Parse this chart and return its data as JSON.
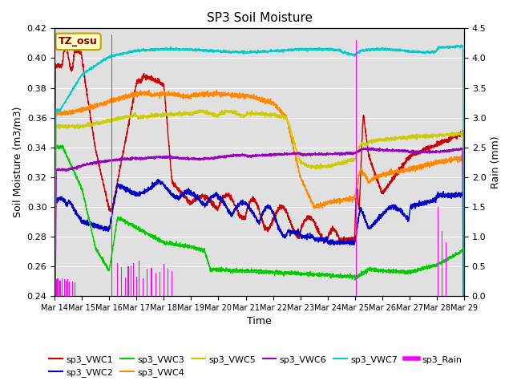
{
  "title": "SP3 Soil Moisture",
  "xlabel": "Time",
  "ylabel_left": "Soil Moisture (m3/m3)",
  "ylabel_right": "Rain (mm)",
  "ylim_left": [
    0.24,
    0.42
  ],
  "ylim_right": [
    0.0,
    4.5
  ],
  "xtick_labels": [
    "Mar 14",
    "Mar 15",
    "Mar 16",
    "Mar 17",
    "Mar 18",
    "Mar 19",
    "Mar 20",
    "Mar 21",
    "Mar 22",
    "Mar 23",
    "Mar 24",
    "Mar 25",
    "Mar 26",
    "Mar 27",
    "Mar 28",
    "Mar 29"
  ],
  "background_color": "#ffffff",
  "plot_bg_color": "#e0e0e0",
  "annotation_box_color": "#ffffc0",
  "annotation_box_edgecolor": "#c8a000",
  "annotation_text": "TZ_osu",
  "colors": {
    "VWC1": "#cc0000",
    "VWC2": "#0000cc",
    "VWC3": "#00cc00",
    "VWC4": "#ff8800",
    "VWC5": "#cccc00",
    "VWC6": "#9900bb",
    "VWC7": "#00cccc",
    "Rain": "#ff00ff"
  }
}
